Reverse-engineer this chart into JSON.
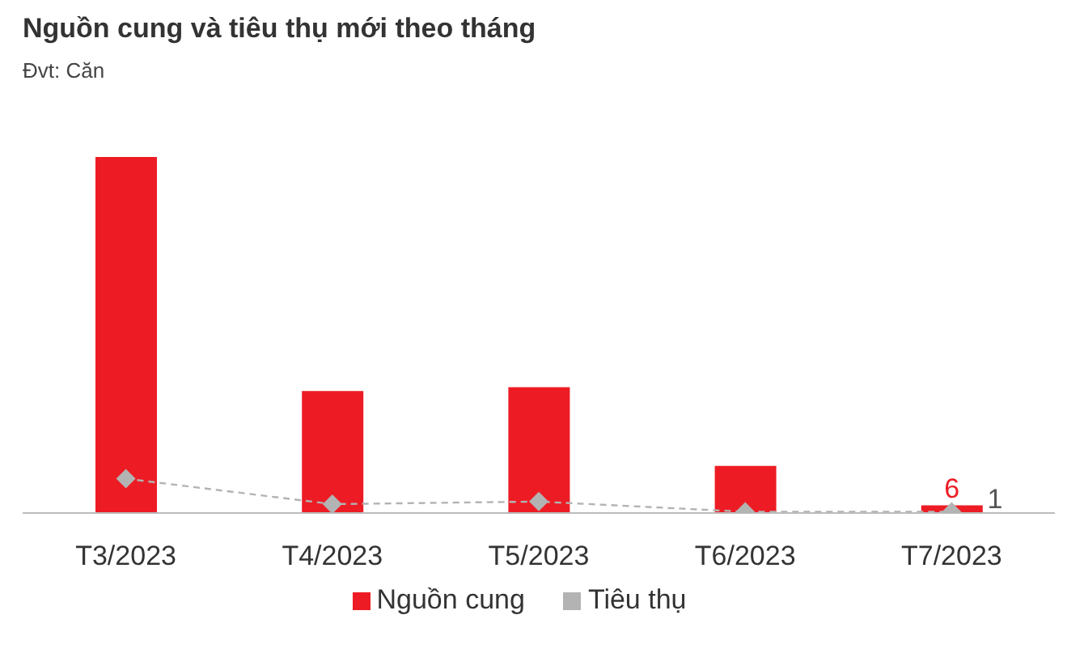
{
  "chart_data": {
    "type": "bar",
    "title": "Nguồn cung và tiêu thụ mới theo tháng",
    "subtitle": "Đvt: Căn",
    "categories": [
      "T3/2023",
      "T4/2023",
      "T5/2023",
      "T6/2023",
      "T7/2023"
    ],
    "series": [
      {
        "name": "Nguồn cung",
        "color": "#ed1c24",
        "values": [
          280,
          96,
          99,
          37,
          6
        ],
        "value_labels": [
          null,
          null,
          null,
          null,
          "6"
        ]
      },
      {
        "name": "Tiêu thụ",
        "type": "line",
        "color": "#b3b3b3",
        "values": [
          27,
          7,
          9,
          1,
          1
        ],
        "value_labels": [
          null,
          null,
          null,
          null,
          "1"
        ],
        "marker": "diamond",
        "line_style": "dashed"
      }
    ],
    "grid": false,
    "legend": "bottom"
  }
}
